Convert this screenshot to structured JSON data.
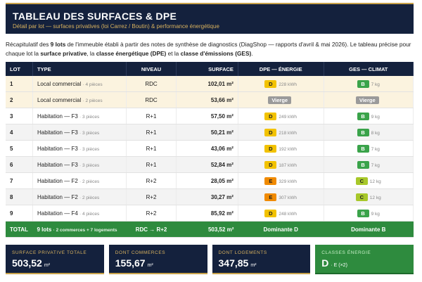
{
  "header": {
    "title": "TABLEAU DES SURFACES & DPE",
    "subtitle": "Détail par lot — surfaces privatives (loi Carrez / Boutin) & performance énergétique"
  },
  "intro": [
    {
      "text": "Récapitulatif des "
    },
    {
      "text": "9 lots",
      "bold": true
    },
    {
      "text": " de l'immeuble établi à partir des notes de synthèse de diagnostics (DiagShop — rapports d'avril & mai 2026). Le tableau précise pour chaque lot la "
    },
    {
      "text": "surface privative",
      "bold": true
    },
    {
      "text": ", la "
    },
    {
      "text": "classe énergétique (DPE)",
      "bold": true
    },
    {
      "text": " et la "
    },
    {
      "text": "classe d'émissions (GES)",
      "bold": true
    },
    {
      "text": "."
    }
  ],
  "table": {
    "columns": [
      "LOT",
      "TYPE",
      "NIVEAU",
      "SURFACE",
      "DPE — ÉNERGIE",
      "GES — CLIMAT"
    ],
    "rows": [
      {
        "lot": "1",
        "type": "Local commercial",
        "detail": "· 4 pièces",
        "niveau": "RDC",
        "surface": "102,01 m²",
        "dpe": {
          "class": "D",
          "value": "228 kWh"
        },
        "ges": {
          "class": "B",
          "value": "7 kg"
        },
        "highlight": true
      },
      {
        "lot": "2",
        "type": "Local commercial",
        "detail": "· 2 pièces",
        "niveau": "RDC",
        "surface": "53,66 m²",
        "dpe": {
          "class": "Vierge"
        },
        "ges": {
          "class": "Vierge"
        },
        "highlight": true
      },
      {
        "lot": "3",
        "type": "Habitation — F3",
        "detail": "· 3 pièces",
        "niveau": "R+1",
        "surface": "57,50 m²",
        "dpe": {
          "class": "D",
          "value": "249 kWh"
        },
        "ges": {
          "class": "B",
          "value": "9 kg"
        }
      },
      {
        "lot": "4",
        "type": "Habitation — F3",
        "detail": "· 3 pièces",
        "niveau": "R+1",
        "surface": "50,21 m²",
        "dpe": {
          "class": "D",
          "value": "218 kWh"
        },
        "ges": {
          "class": "B",
          "value": "8 kg"
        }
      },
      {
        "lot": "5",
        "type": "Habitation — F3",
        "detail": "· 3 pièces",
        "niveau": "R+1",
        "surface": "43,06 m²",
        "dpe": {
          "class": "D",
          "value": "192 kWh"
        },
        "ges": {
          "class": "B",
          "value": "7 kg"
        }
      },
      {
        "lot": "6",
        "type": "Habitation — F3",
        "detail": "· 3 pièces",
        "niveau": "R+1",
        "surface": "52,84 m²",
        "dpe": {
          "class": "D",
          "value": "187 kWh"
        },
        "ges": {
          "class": "B",
          "value": "7 kg"
        }
      },
      {
        "lot": "7",
        "type": "Habitation — F2",
        "detail": "· 2 pièces",
        "niveau": "R+2",
        "surface": "28,05 m²",
        "dpe": {
          "class": "E",
          "value": "329 kWh"
        },
        "ges": {
          "class": "C",
          "value": "12 kg"
        }
      },
      {
        "lot": "8",
        "type": "Habitation — F2",
        "detail": "· 2 pièces",
        "niveau": "R+2",
        "surface": "30,27 m²",
        "dpe": {
          "class": "E",
          "value": "307 kWh"
        },
        "ges": {
          "class": "C",
          "value": "12 kg"
        }
      },
      {
        "lot": "9",
        "type": "Habitation — F4",
        "detail": "· 4 pièces",
        "niveau": "R+2",
        "surface": "85,92 m²",
        "dpe": {
          "class": "D",
          "value": "248 kWh"
        },
        "ges": {
          "class": "B",
          "value": "9 kg"
        }
      }
    ],
    "total": {
      "lot": "TOTAL",
      "type": "9 lots",
      "detail": "· 2 commerces + 7 logements",
      "niveau": "RDC → R+2",
      "surface": "503,52 m²",
      "dpe": "Dominante D",
      "ges": "Dominante B"
    }
  },
  "cards": [
    {
      "label": "SURFACE PRIVATIVE TOTALE",
      "value": "503,52",
      "unit": "m²"
    },
    {
      "label": "DONT COMMERCES",
      "value": "155,67",
      "unit": "m²"
    },
    {
      "label": "DONT LOGEMENTS",
      "value": "347,85",
      "unit": "m²"
    },
    {
      "label": "CLASSES ÉNERGIE",
      "value": "D",
      "unit": "· E (×2)",
      "accent": true
    }
  ]
}
